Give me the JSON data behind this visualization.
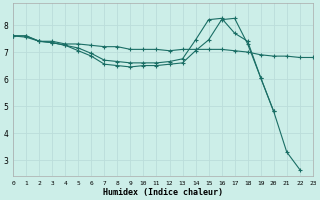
{
  "title": "",
  "xlabel": "Humidex (Indice chaleur)",
  "background_color": "#cceee8",
  "grid_color": "#bbddda",
  "line_color": "#1a6e65",
  "x_ticks": [
    0,
    1,
    2,
    3,
    4,
    5,
    6,
    7,
    8,
    9,
    10,
    11,
    12,
    13,
    14,
    15,
    16,
    17,
    18,
    19,
    20,
    21,
    22,
    23
  ],
  "x_ticklabels": [
    "0",
    "1",
    "2",
    "3",
    "4",
    "5",
    "6",
    "7",
    "8",
    "9",
    "10",
    "11",
    "12",
    "13",
    "14",
    "15",
    "16",
    "17",
    "18",
    "19",
    "20",
    "21",
    "22",
    "23"
  ],
  "y_ticks": [
    3,
    4,
    5,
    6,
    7,
    8
  ],
  "ylim": [
    2.4,
    8.8
  ],
  "xlim": [
    0,
    23
  ],
  "series": [
    {
      "x": [
        0,
        1,
        2,
        3,
        4,
        5,
        6,
        7,
        8,
        9,
        10,
        11,
        12,
        13,
        14,
        15,
        16,
        17,
        18,
        19,
        20,
        21,
        22,
        23
      ],
      "y": [
        7.6,
        7.6,
        7.4,
        7.4,
        7.3,
        7.3,
        7.25,
        7.2,
        7.2,
        7.1,
        7.1,
        7.1,
        7.05,
        7.1,
        7.1,
        7.1,
        7.1,
        7.05,
        7.0,
        6.9,
        6.85,
        6.85,
        6.8,
        6.8
      ]
    },
    {
      "x": [
        0,
        1,
        2,
        3,
        4,
        5,
        6,
        7,
        8,
        9,
        10,
        11,
        12,
        13,
        14,
        15,
        16,
        17,
        18,
        19,
        20
      ],
      "y": [
        7.6,
        7.6,
        7.4,
        7.35,
        7.25,
        7.05,
        6.85,
        6.55,
        6.5,
        6.45,
        6.5,
        6.5,
        6.55,
        6.6,
        7.05,
        7.45,
        8.2,
        8.25,
        7.3,
        6.05,
        4.8
      ]
    },
    {
      "x": [
        0,
        1,
        2,
        3,
        4,
        5,
        6,
        7,
        8,
        9,
        10,
        11,
        12,
        13,
        14,
        15,
        16,
        17,
        18,
        19,
        20,
        21,
        22
      ],
      "y": [
        7.6,
        7.55,
        7.4,
        7.35,
        7.25,
        7.15,
        6.95,
        6.7,
        6.65,
        6.6,
        6.6,
        6.6,
        6.65,
        6.75,
        7.45,
        8.2,
        8.25,
        7.7,
        7.4,
        6.05,
        4.8,
        3.3,
        2.65
      ]
    }
  ]
}
